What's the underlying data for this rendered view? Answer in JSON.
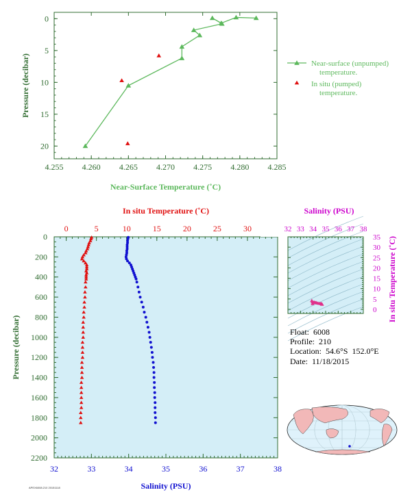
{
  "colors": {
    "green": "#5cb85c",
    "tick_green": "#2f6b2f",
    "red": "#e01010",
    "blue": "#1010d0",
    "magenta": "#cc00cc",
    "plot_bg": "#d4eef7",
    "pink": "#e0308a"
  },
  "info": {
    "float": "Float:  6008",
    "profile": "Profile:  210",
    "location": "Location:  54.6°S  152.0°E",
    "date": "Date:  11/18/2015"
  },
  "footer_code": "APEX6008.210 20151118",
  "chart_data": [
    {
      "id": "near_surface",
      "type": "line",
      "xlabel": "Near-Surface Temperature (˚C)",
      "ylabel": "Pressure (decibar)",
      "xlim": [
        4.255,
        4.285
      ],
      "ylim": [
        22,
        -1
      ],
      "x_ticks": [
        "4.255",
        "4.260",
        "4.265",
        "4.270",
        "4.275",
        "4.280",
        "4.285"
      ],
      "x_tick_values": [
        4.255,
        4.26,
        4.265,
        4.27,
        4.275,
        4.28,
        4.285
      ],
      "y_ticks": [
        "0",
        "5",
        "10",
        "15",
        "20"
      ],
      "y_tick_values": [
        0,
        5,
        10,
        15,
        20
      ],
      "series": [
        {
          "name": "Near-surface (unpumped) temperature.",
          "marker": "triangle",
          "line": true,
          "points": [
            [
              4.2822,
              -0.1
            ],
            [
              4.2795,
              -0.2
            ],
            [
              4.2775,
              0.7
            ],
            [
              4.2763,
              -0.1
            ],
            [
              4.2776,
              0.8
            ],
            [
              4.2738,
              1.8
            ],
            [
              4.2746,
              2.6
            ],
            [
              4.2722,
              4.4
            ],
            [
              4.2722,
              6.2
            ],
            [
              4.265,
              10.5
            ],
            [
              4.2592,
              20.0
            ]
          ]
        },
        {
          "name": "In situ (pumped) temperature.",
          "marker": "triangle",
          "line": false,
          "points": [
            [
              4.2691,
              5.8
            ],
            [
              4.2641,
              9.7
            ],
            [
              4.2649,
              19.6
            ]
          ]
        }
      ],
      "legend": [
        "Near-surface (unpumped)",
        "temperature.",
        "In situ (pumped)",
        "temperature."
      ]
    },
    {
      "id": "profile",
      "type": "scatter",
      "title": "In situ Temperature (˚C)",
      "xlabel": "Salinity (PSU)",
      "ylabel": "Pressure (decibar)",
      "temp_lim": [
        -2,
        35
      ],
      "sal_lim": [
        32,
        38
      ],
      "ylim": [
        2200,
        0
      ],
      "temp_ticks": [
        "0",
        "5",
        "10",
        "15",
        "20",
        "25",
        "30",
        "35"
      ],
      "temp_tick_values": [
        0,
        5,
        10,
        15,
        20,
        25,
        30,
        35
      ],
      "sal_ticks": [
        "32",
        "33",
        "34",
        "35",
        "36",
        "37",
        "38"
      ],
      "sal_tick_values": [
        32,
        33,
        34,
        35,
        36,
        37,
        38
      ],
      "y_ticks": [
        "0",
        "200",
        "400",
        "600",
        "800",
        "1000",
        "1200",
        "1400",
        "1600",
        "1800",
        "2000",
        "2200"
      ],
      "y_tick_values": [
        0,
        200,
        400,
        600,
        800,
        1000,
        1200,
        1400,
        1600,
        1800,
        2000,
        2200
      ],
      "temperature": [
        [
          4.2,
          5
        ],
        [
          4.1,
          20
        ],
        [
          4.0,
          40
        ],
        [
          3.8,
          60
        ],
        [
          3.7,
          80
        ],
        [
          3.6,
          100
        ],
        [
          3.5,
          120
        ],
        [
          3.3,
          140
        ],
        [
          3.2,
          160
        ],
        [
          2.9,
          180
        ],
        [
          2.7,
          200
        ],
        [
          2.6,
          220
        ],
        [
          2.9,
          240
        ],
        [
          3.2,
          260
        ],
        [
          3.4,
          280
        ],
        [
          3.4,
          300
        ],
        [
          3.4,
          320
        ],
        [
          3.3,
          340
        ],
        [
          3.4,
          360
        ],
        [
          3.3,
          380
        ],
        [
          3.3,
          400
        ],
        [
          3.3,
          420
        ],
        [
          3.2,
          450
        ],
        [
          3.2,
          500
        ],
        [
          3.1,
          550
        ],
        [
          3.1,
          600
        ],
        [
          3.0,
          650
        ],
        [
          3.0,
          700
        ],
        [
          2.9,
          750
        ],
        [
          2.9,
          800
        ],
        [
          2.8,
          850
        ],
        [
          2.8,
          900
        ],
        [
          2.8,
          950
        ],
        [
          2.8,
          1000
        ],
        [
          2.7,
          1050
        ],
        [
          2.7,
          1100
        ],
        [
          2.7,
          1150
        ],
        [
          2.7,
          1200
        ],
        [
          2.6,
          1250
        ],
        [
          2.6,
          1300
        ],
        [
          2.6,
          1350
        ],
        [
          2.6,
          1400
        ],
        [
          2.5,
          1450
        ],
        [
          2.5,
          1500
        ],
        [
          2.5,
          1550
        ],
        [
          2.5,
          1600
        ],
        [
          2.5,
          1650
        ],
        [
          2.5,
          1700
        ],
        [
          2.4,
          1750
        ],
        [
          2.4,
          1800
        ],
        [
          2.4,
          1850
        ]
      ],
      "salinity": [
        [
          33.99,
          5
        ],
        [
          33.98,
          20
        ],
        [
          33.97,
          40
        ],
        [
          33.97,
          60
        ],
        [
          33.96,
          80
        ],
        [
          33.96,
          100
        ],
        [
          33.96,
          120
        ],
        [
          33.95,
          140
        ],
        [
          33.95,
          160
        ],
        [
          33.94,
          180
        ],
        [
          33.93,
          200
        ],
        [
          33.94,
          220
        ],
        [
          33.97,
          240
        ],
        [
          34.02,
          260
        ],
        [
          34.06,
          280
        ],
        [
          34.08,
          300
        ],
        [
          34.1,
          320
        ],
        [
          34.12,
          340
        ],
        [
          34.14,
          360
        ],
        [
          34.16,
          380
        ],
        [
          34.18,
          400
        ],
        [
          34.2,
          420
        ],
        [
          34.22,
          450
        ],
        [
          34.25,
          500
        ],
        [
          34.28,
          550
        ],
        [
          34.31,
          600
        ],
        [
          34.35,
          650
        ],
        [
          34.39,
          700
        ],
        [
          34.42,
          750
        ],
        [
          34.46,
          800
        ],
        [
          34.49,
          850
        ],
        [
          34.52,
          900
        ],
        [
          34.55,
          950
        ],
        [
          34.57,
          1000
        ],
        [
          34.59,
          1050
        ],
        [
          34.61,
          1100
        ],
        [
          34.63,
          1150
        ],
        [
          34.64,
          1200
        ],
        [
          34.66,
          1250
        ],
        [
          34.67,
          1300
        ],
        [
          34.68,
          1350
        ],
        [
          34.68,
          1400
        ],
        [
          34.69,
          1450
        ],
        [
          34.69,
          1500
        ],
        [
          34.7,
          1550
        ],
        [
          34.7,
          1600
        ],
        [
          34.71,
          1650
        ],
        [
          34.71,
          1700
        ],
        [
          34.71,
          1750
        ],
        [
          34.72,
          1800
        ],
        [
          34.72,
          1850
        ]
      ]
    },
    {
      "id": "ts_diagram",
      "type": "scatter",
      "title": "Salinity (PSU)",
      "ylabel": "In situ Temperature (˚C)",
      "xlim": [
        32,
        38
      ],
      "ylim": [
        -2,
        35
      ],
      "x_ticks": [
        "32",
        "33",
        "34",
        "35",
        "36",
        "37",
        "38"
      ],
      "x_tick_values": [
        32,
        33,
        34,
        35,
        36,
        37,
        38
      ],
      "y_ticks": [
        "0",
        "5",
        "10",
        "15",
        "20",
        "25",
        "30",
        "35"
      ],
      "y_tick_values": [
        0,
        5,
        10,
        15,
        20,
        25,
        30,
        35
      ],
      "points": [
        [
          33.9,
          4.2
        ],
        [
          33.95,
          3.6
        ],
        [
          33.96,
          2.7
        ],
        [
          34.06,
          3.4
        ],
        [
          34.18,
          3.3
        ],
        [
          34.25,
          3.2
        ],
        [
          34.35,
          3.0
        ],
        [
          34.46,
          2.9
        ],
        [
          34.57,
          2.8
        ],
        [
          34.64,
          2.7
        ],
        [
          34.68,
          2.6
        ],
        [
          34.71,
          2.5
        ],
        [
          34.72,
          2.4
        ],
        [
          34.02,
          3.2
        ],
        [
          34.1,
          3.4
        ]
      ]
    }
  ]
}
